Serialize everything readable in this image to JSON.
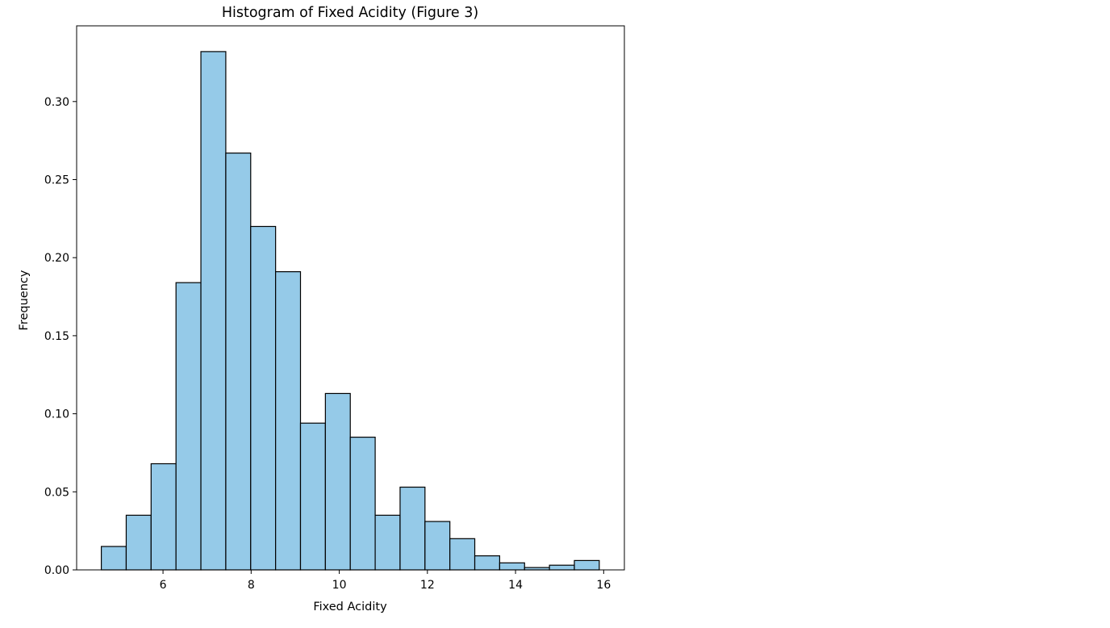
{
  "chart_data": {
    "type": "bar",
    "title": "Histogram of Fixed Acidity (Figure 3)",
    "xlabel": "Fixed Acidity",
    "ylabel": "Frequency",
    "bin_start": 4.6,
    "bin_width": 0.565,
    "values": [
      0.015,
      0.035,
      0.068,
      0.184,
      0.332,
      0.267,
      0.22,
      0.191,
      0.094,
      0.113,
      0.085,
      0.035,
      0.053,
      0.031,
      0.02,
      0.009,
      0.0045,
      0.0015,
      0.003,
      0.006
    ],
    "xlim": [
      4.04,
      16.47
    ],
    "ylim": [
      0,
      0.3485
    ],
    "xticks": [
      6,
      8,
      10,
      12,
      14,
      16
    ],
    "xtick_labels": [
      "6",
      "8",
      "10",
      "12",
      "14",
      "16"
    ],
    "yticks": [
      0,
      0.05,
      0.1,
      0.15,
      0.2,
      0.25,
      0.3
    ],
    "ytick_labels": [
      "0.00",
      "0.05",
      "0.10",
      "0.15",
      "0.20",
      "0.25",
      "0.30"
    ],
    "bar_color": "#95cae8",
    "edge_color": "#000000",
    "grid": false,
    "legend": "none"
  }
}
